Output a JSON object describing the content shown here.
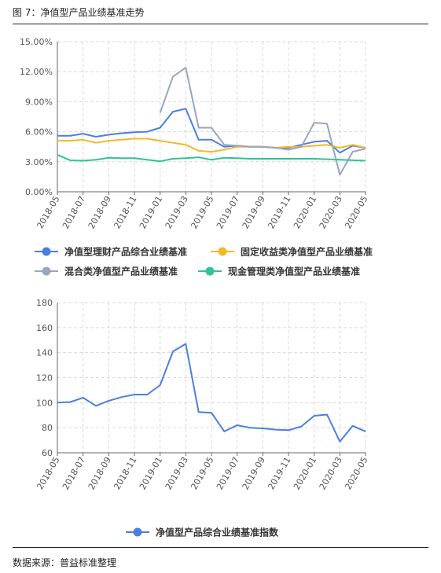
{
  "figure": {
    "title": "图 7：净值型产品业绩基准走势",
    "source": "数据来源：普益标准整理"
  },
  "chart_data": [
    {
      "type": "line",
      "x": [
        "2018-05",
        "2018-06",
        "2018-07",
        "2018-08",
        "2018-09",
        "2018-10",
        "2018-11",
        "2018-12",
        "2019-01",
        "2019-02",
        "2019-03",
        "2019-04",
        "2019-05",
        "2019-06",
        "2019-07",
        "2019-08",
        "2019-09",
        "2019-10",
        "2019-11",
        "2019-12",
        "2020-01",
        "2020-02",
        "2020-03",
        "2020-04",
        "2020-05"
      ],
      "x_tick_labels": [
        "2018-05",
        "2018-07",
        "2018-09",
        "2018-11",
        "2019-01",
        "2019-03",
        "2019-05",
        "2019-07",
        "2019-09",
        "2019-11",
        "2020-01",
        "2020-03",
        "2020-05"
      ],
      "ylim": [
        0,
        15
      ],
      "y_ticks": [
        0,
        3,
        6,
        9,
        12,
        15
      ],
      "y_tick_labels": [
        "0.00%",
        "3.00%",
        "6.00%",
        "9.00%",
        "12.00%",
        "15.00%"
      ],
      "grid": true,
      "legend_position": "bottom",
      "series": [
        {
          "name": "净值型理财产品综合业绩基准",
          "color": "#4a7fe0",
          "values": [
            5.6,
            5.6,
            5.8,
            5.5,
            5.7,
            5.85,
            5.95,
            6.0,
            6.4,
            8.0,
            8.3,
            5.2,
            5.2,
            4.5,
            4.6,
            4.5,
            4.5,
            4.4,
            4.4,
            4.7,
            5.0,
            5.1,
            3.9,
            4.6,
            4.4
          ]
        },
        {
          "name": "固定收益类净值型产品业绩基准",
          "color": "#f5b829",
          "values": [
            5.1,
            5.1,
            5.2,
            4.9,
            5.1,
            5.2,
            5.3,
            5.3,
            5.1,
            4.9,
            4.7,
            4.1,
            4.0,
            4.2,
            4.5,
            4.5,
            4.5,
            4.4,
            4.5,
            4.5,
            4.6,
            4.7,
            4.4,
            4.7,
            4.4
          ]
        },
        {
          "name": "混合类净值型产品业绩基准",
          "color": "#9aa5bf",
          "values": [
            null,
            null,
            null,
            null,
            null,
            null,
            null,
            null,
            7.9,
            11.5,
            12.4,
            6.4,
            6.4,
            4.7,
            4.6,
            4.5,
            4.5,
            4.4,
            4.2,
            4.5,
            6.9,
            6.8,
            1.7,
            4.0,
            4.3
          ]
        },
        {
          "name": "现金管理类净值型产品业绩基准",
          "color": "#2ec39a",
          "values": [
            3.7,
            3.15,
            3.1,
            3.2,
            3.4,
            3.35,
            3.35,
            3.2,
            3.05,
            3.3,
            3.35,
            3.45,
            3.2,
            3.4,
            3.35,
            3.3,
            3.3,
            3.3,
            3.3,
            3.3,
            3.3,
            3.25,
            3.2,
            3.15,
            3.1
          ]
        }
      ]
    },
    {
      "type": "line",
      "x": [
        "2018-05",
        "2018-06",
        "2018-07",
        "2018-08",
        "2018-09",
        "2018-10",
        "2018-11",
        "2018-12",
        "2019-01",
        "2019-02",
        "2019-03",
        "2019-04",
        "2019-05",
        "2019-06",
        "2019-07",
        "2019-08",
        "2019-09",
        "2019-10",
        "2019-11",
        "2019-12",
        "2020-01",
        "2020-02",
        "2020-03",
        "2020-04",
        "2020-05"
      ],
      "x_tick_labels": [
        "2018-05",
        "2018-07",
        "2018-09",
        "2018-11",
        "2019-01",
        "2019-03",
        "2019-05",
        "2019-07",
        "2019-09",
        "2019-11",
        "2020-01",
        "2020-03",
        "2020-05"
      ],
      "ylim": [
        60,
        180
      ],
      "y_ticks": [
        60,
        80,
        100,
        120,
        140,
        160,
        180
      ],
      "y_tick_labels": [
        "60",
        "80",
        "100",
        "120",
        "140",
        "160",
        "180"
      ],
      "grid": true,
      "legend_position": "bottom",
      "series": [
        {
          "name": "净值型产品综合业绩基准指数",
          "color": "#4a7fe0",
          "values": [
            100,
            100.5,
            104,
            97.5,
            101.5,
            104.5,
            106.5,
            106.5,
            114,
            141,
            147,
            92.5,
            92,
            77,
            82,
            80,
            79.5,
            78.5,
            78,
            81,
            89.5,
            90.5,
            69,
            81.5,
            77
          ]
        }
      ]
    }
  ]
}
